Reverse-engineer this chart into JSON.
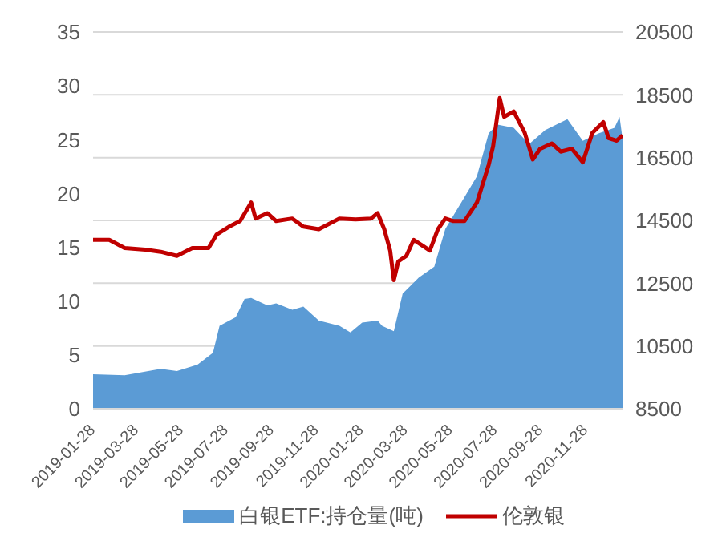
{
  "chart_data": {
    "type": "area",
    "legend": "bottom",
    "grid": "y",
    "xlim": [
      "2019-01-28",
      "2021-01-17"
    ],
    "xticks": [
      "2019-01-28",
      "2019-03-28",
      "2019-05-28",
      "2019-07-28",
      "2019-09-28",
      "2019-11-28",
      "2020-01-28",
      "2020-03-28",
      "2020-05-28",
      "2020-07-28",
      "2020-09-28",
      "2020-11-28"
    ],
    "ylim": [
      0,
      35
    ],
    "yticks": [
      0,
      5,
      10,
      15,
      20,
      25,
      30,
      35
    ],
    "y2lim": [
      8500,
      20500
    ],
    "y2ticks": [
      8500,
      10500,
      12500,
      14500,
      16500,
      18500,
      20500
    ],
    "series": [
      {
        "name": "白银ETF:持仓量(吨)",
        "color": "#5b9bd5",
        "x": [
          "2019-01-28",
          "2019-03-12",
          "2019-04-30",
          "2019-05-22",
          "2019-06-19",
          "2019-07-10",
          "2019-07-19",
          "2019-08-10",
          "2019-08-22",
          "2019-08-31",
          "2019-09-22",
          "2019-10-04",
          "2019-10-26",
          "2019-11-10",
          "2019-12-01",
          "2019-12-29",
          "2020-01-13",
          "2020-01-29",
          "2020-02-19",
          "2020-02-25",
          "2020-03-12",
          "2020-03-24",
          "2020-04-15",
          "2020-05-06",
          "2020-05-21",
          "2020-06-12",
          "2020-07-03",
          "2020-07-19",
          "2020-07-31",
          "2020-08-22",
          "2020-09-12",
          "2020-10-04",
          "2020-11-03",
          "2020-11-24",
          "2020-12-16",
          "2021-01-06",
          "2021-01-13",
          "2021-01-17"
        ],
        "values": [
          3.2,
          3.1,
          3.7,
          3.5,
          4.1,
          5.2,
          7.7,
          8.5,
          10.2,
          10.3,
          9.6,
          9.8,
          9.2,
          9.5,
          8.2,
          7.7,
          7.1,
          8.0,
          8.2,
          7.7,
          7.2,
          10.7,
          12.2,
          13.2,
          16.7,
          19.2,
          21.6,
          25.6,
          26.4,
          26.1,
          24.6,
          25.9,
          26.9,
          24.9,
          25.6,
          26.1,
          27.1,
          25.1
        ]
      },
      {
        "name": "伦敦银",
        "type": "line",
        "axis": "y2",
        "color": "#c00000",
        "marker": "none",
        "x": [
          "2019-01-28",
          "2019-02-19",
          "2019-03-12",
          "2019-04-09",
          "2019-04-30",
          "2019-05-22",
          "2019-06-12",
          "2019-07-04",
          "2019-07-15",
          "2019-08-01",
          "2019-08-16",
          "2019-08-31",
          "2019-09-06",
          "2019-09-22",
          "2019-10-04",
          "2019-10-26",
          "2019-11-10",
          "2019-12-01",
          "2019-12-29",
          "2020-01-20",
          "2020-02-10",
          "2020-02-19",
          "2020-02-28",
          "2020-03-07",
          "2020-03-12",
          "2020-03-18",
          "2020-03-29",
          "2020-04-08",
          "2020-04-19",
          "2020-04-30",
          "2020-05-11",
          "2020-05-21",
          "2020-06-01",
          "2020-06-16",
          "2020-07-03",
          "2020-07-19",
          "2020-07-25",
          "2020-08-03",
          "2020-08-09",
          "2020-08-22",
          "2020-09-06",
          "2020-09-17",
          "2020-09-27",
          "2020-10-13",
          "2020-10-25",
          "2020-11-09",
          "2020-11-24",
          "2020-12-07",
          "2020-12-22",
          "2020-12-29",
          "2021-01-09",
          "2021-01-17"
        ],
        "values": [
          13880,
          13880,
          13620,
          13570,
          13500,
          13370,
          13620,
          13620,
          14050,
          14300,
          14480,
          15070,
          14560,
          14730,
          14480,
          14560,
          14300,
          14220,
          14560,
          14530,
          14560,
          14730,
          14220,
          13540,
          12600,
          13190,
          13370,
          13880,
          13710,
          13540,
          14220,
          14560,
          14480,
          14480,
          15070,
          16270,
          16860,
          18400,
          17800,
          17970,
          17290,
          16440,
          16780,
          16950,
          16690,
          16780,
          16350,
          17290,
          17630,
          17120,
          17040,
          17210
        ]
      }
    ]
  }
}
